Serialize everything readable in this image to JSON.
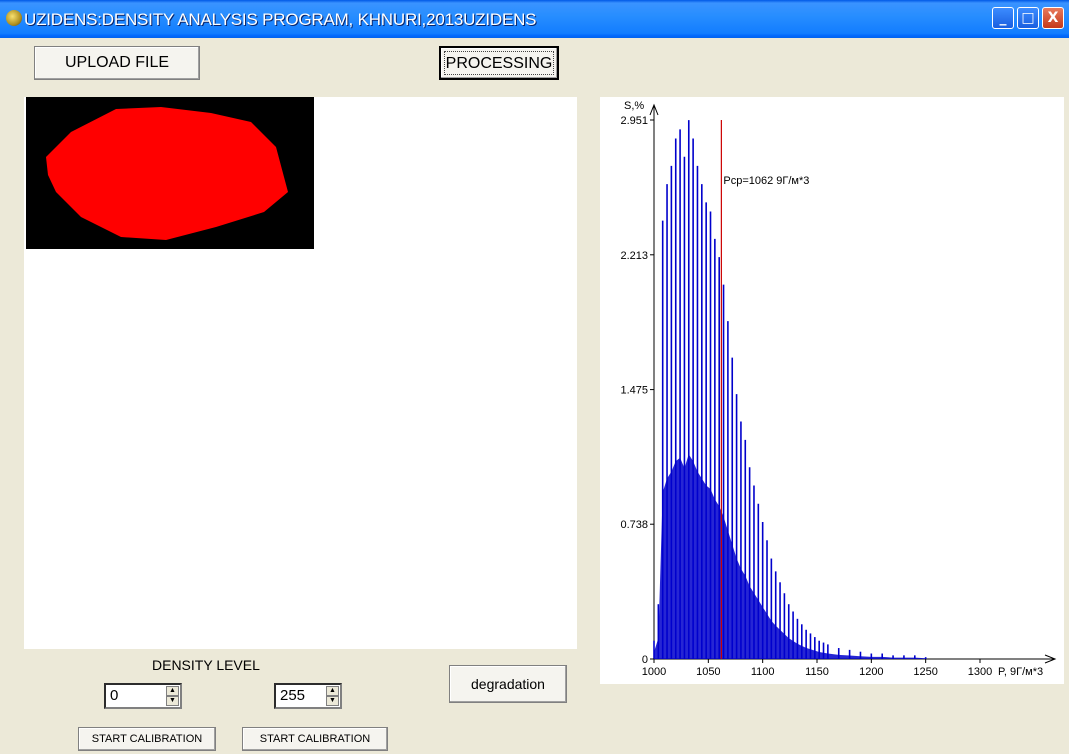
{
  "window": {
    "title": "UZIDENS:DENSITY ANALYSIS PROGRAM, KHNURI,2013UZIDENS",
    "icon": "app-icon",
    "controls": {
      "minimize": "_",
      "maximize": "□",
      "close": "X"
    }
  },
  "toolbar": {
    "upload_label": "UPLOAD FILE",
    "processing_label": "PROCESSING"
  },
  "preview": {
    "background": "#000000",
    "blob_color": "#ff0000"
  },
  "density": {
    "label": "DENSITY LEVEL",
    "min_value": "0",
    "max_value": "255",
    "calibrate_1": "START CALIBRATION",
    "calibrate_2": "START CALIBRATION",
    "degradation_label": "degradation"
  },
  "colors": {
    "bars": "#0000cc",
    "mean_line": "#cc0000",
    "titlebar": "#0a58e6"
  },
  "chart_data": {
    "type": "bar",
    "ylabel": "S,%",
    "xlabel": "P, gr/m^3",
    "xlabel_display": "P, 9Г/м*3",
    "y_ticks": [
      "2.951",
      "2.213",
      "1.475",
      "0.738",
      "0"
    ],
    "y_tick_values": [
      2.951,
      2.213,
      1.475,
      0.738,
      0
    ],
    "x_ticks": [
      "1000",
      "1050",
      "1100",
      "1150",
      "1200",
      "1250",
      "1300"
    ],
    "x_tick_values": [
      1000,
      1050,
      1100,
      1150,
      1200,
      1250,
      1300
    ],
    "xlim": [
      1000,
      1350
    ],
    "ylim": [
      0,
      2.951
    ],
    "mean_label": "Pcp=1062 9Г/м*3",
    "mean_value": 1062,
    "series": [
      {
        "values_x": [
          1000,
          1004,
          1008,
          1012,
          1016,
          1020,
          1024,
          1028,
          1032,
          1036,
          1040,
          1044,
          1048,
          1052,
          1056,
          1060,
          1064,
          1068,
          1072,
          1076,
          1080,
          1084,
          1088,
          1092,
          1096,
          1100,
          1104,
          1108,
          1112,
          1116,
          1120,
          1124,
          1128,
          1132,
          1136,
          1140,
          1144,
          1148,
          1152,
          1156,
          1160,
          1170,
          1180,
          1190,
          1200,
          1210,
          1220,
          1230,
          1240,
          1250
        ],
        "values_y": [
          0.1,
          0.3,
          2.4,
          2.6,
          2.7,
          2.85,
          2.9,
          2.75,
          2.95,
          2.85,
          2.7,
          2.6,
          2.5,
          2.45,
          2.3,
          2.2,
          2.05,
          1.85,
          1.65,
          1.45,
          1.3,
          1.2,
          1.05,
          0.95,
          0.85,
          0.75,
          0.65,
          0.55,
          0.48,
          0.42,
          0.36,
          0.3,
          0.26,
          0.22,
          0.19,
          0.16,
          0.14,
          0.12,
          0.1,
          0.09,
          0.08,
          0.06,
          0.05,
          0.04,
          0.03,
          0.03,
          0.02,
          0.02,
          0.02,
          0.01
        ]
      }
    ]
  }
}
